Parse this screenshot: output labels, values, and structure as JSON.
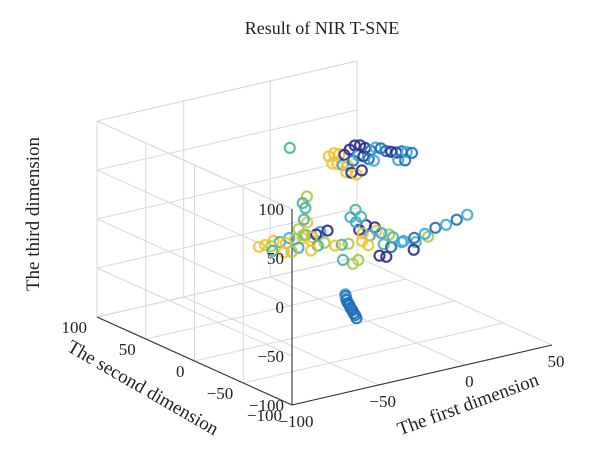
{
  "chart_data": {
    "type": "scatter",
    "projection": "3d",
    "title": "Result of NIR T-SNE",
    "xlabel": "The first dimension",
    "ylabel": "The second dimension",
    "zlabel": "The third dimension",
    "xlim": [
      -100,
      50
    ],
    "ylim": [
      -100,
      100
    ],
    "zlim": [
      -100,
      100
    ],
    "xticks": [
      "−100",
      "−50",
      "0",
      "50"
    ],
    "yticks": [
      "−100",
      "−50",
      "0",
      "50",
      "100"
    ],
    "zticks": [
      "−100",
      "−50",
      "0",
      "50",
      "100"
    ],
    "grid": true,
    "marker": "hollow-circle",
    "colors": [
      "#2b2f8f",
      "#1f6fb8",
      "#3fa9d8",
      "#4fb3a4",
      "#a8cc4a",
      "#f1c232"
    ],
    "points": [
      {
        "x": -60,
        "y": -95,
        "z": -30,
        "c": 1
      },
      {
        "x": -58,
        "y": -90,
        "z": -30,
        "c": 1
      },
      {
        "x": -56,
        "y": -85,
        "z": -31,
        "c": 1
      },
      {
        "x": -54,
        "y": -80,
        "z": -31,
        "c": 1
      },
      {
        "x": -52,
        "y": -75,
        "z": -32,
        "c": 1
      },
      {
        "x": -50,
        "y": -70,
        "z": -32,
        "c": 1
      },
      {
        "x": -48,
        "y": -65,
        "z": -33,
        "c": 1
      },
      {
        "x": -46,
        "y": -60,
        "z": -33,
        "c": 1
      },
      {
        "x": -44,
        "y": -56,
        "z": -34,
        "c": 2
      },
      {
        "x": -42,
        "y": -52,
        "z": -34,
        "c": 1
      },
      {
        "x": -40,
        "y": -48,
        "z": -35,
        "c": 2
      },
      {
        "x": -60,
        "y": 5,
        "z": -2,
        "c": 5
      },
      {
        "x": -57,
        "y": 4,
        "z": -1,
        "c": 5
      },
      {
        "x": -54,
        "y": 3,
        "z": -3,
        "c": 4
      },
      {
        "x": -51,
        "y": 6,
        "z": 0,
        "c": 5
      },
      {
        "x": -48,
        "y": 5,
        "z": -2,
        "c": 3
      },
      {
        "x": -45,
        "y": 4,
        "z": -4,
        "c": 5
      },
      {
        "x": -42,
        "y": 6,
        "z": -1,
        "c": 2
      },
      {
        "x": -39,
        "y": 5,
        "z": -3,
        "c": 4
      },
      {
        "x": -36,
        "y": 3,
        "z": -2,
        "c": 5
      },
      {
        "x": -33,
        "y": 5,
        "z": -1,
        "c": 3
      },
      {
        "x": -30,
        "y": 4,
        "z": -4,
        "c": 5
      },
      {
        "x": -27,
        "y": 5,
        "z": -3,
        "c": 0
      },
      {
        "x": -24,
        "y": 6,
        "z": -2,
        "c": 2
      },
      {
        "x": -21,
        "y": 4,
        "z": -1,
        "c": 0
      },
      {
        "x": -55,
        "y": 0,
        "z": -6,
        "c": 3
      },
      {
        "x": -50,
        "y": -3,
        "z": -8,
        "c": 5
      },
      {
        "x": -45,
        "y": -2,
        "z": -10,
        "c": 4
      },
      {
        "x": -40,
        "y": 0,
        "z": -9,
        "c": 2
      },
      {
        "x": -35,
        "y": -4,
        "z": -12,
        "c": 5
      },
      {
        "x": -30,
        "y": -2,
        "z": -10,
        "c": 3
      },
      {
        "x": -40,
        "y": 0,
        "z": 10,
        "c": 4
      },
      {
        "x": -38,
        "y": -2,
        "z": 20,
        "c": 3
      },
      {
        "x": -36,
        "y": 0,
        "z": 30,
        "c": 3
      },
      {
        "x": -34,
        "y": 2,
        "z": 40,
        "c": 4
      },
      {
        "x": -35,
        "y": 0,
        "z": 15,
        "c": 5
      },
      {
        "x": -39,
        "y": -3,
        "z": 5,
        "c": 4
      },
      {
        "x": -37,
        "y": 1,
        "z": 35,
        "c": 3
      },
      {
        "x": -45,
        "y": 0,
        "z": 95,
        "c": 3
      },
      {
        "x": -30,
        "y": 5,
        "z": -8,
        "c": 5
      },
      {
        "x": -25,
        "y": 0,
        "z": -10,
        "c": 4
      },
      {
        "x": -20,
        "y": -2,
        "z": -14,
        "c": 5
      },
      {
        "x": -15,
        "y": 0,
        "z": -16,
        "c": 3
      },
      {
        "x": -10,
        "y": 2,
        "z": -18,
        "c": 4
      },
      {
        "x": -5,
        "y": -3,
        "z": -15,
        "c": 5
      },
      {
        "x": 0,
        "y": -2,
        "z": -12,
        "c": 2
      },
      {
        "x": 5,
        "y": 0,
        "z": -10,
        "c": 5
      },
      {
        "x": 10,
        "y": -4,
        "z": -14,
        "c": 4
      },
      {
        "x": -20,
        "y": -10,
        "z": -25,
        "c": 3
      },
      {
        "x": -10,
        "y": -8,
        "z": -30,
        "c": 4
      },
      {
        "x": 0,
        "y": -12,
        "z": -28,
        "c": 0
      },
      {
        "x": 5,
        "y": -10,
        "z": -32,
        "c": 0
      },
      {
        "x": 10,
        "y": -6,
        "z": -26,
        "c": 1
      },
      {
        "x": 15,
        "y": -8,
        "z": -22,
        "c": 2
      },
      {
        "x": -12,
        "y": -6,
        "z": -34,
        "c": 4
      },
      {
        "x": -2,
        "y": -4,
        "z": -20,
        "c": 5
      },
      {
        "x": 8,
        "y": -2,
        "z": -24,
        "c": 3
      },
      {
        "x": -5,
        "y": 0,
        "z": -5,
        "c": 0
      },
      {
        "x": 0,
        "y": 2,
        "z": -3,
        "c": 0
      },
      {
        "x": 4,
        "y": 0,
        "z": -6,
        "c": 0
      },
      {
        "x": -4,
        "y": -2,
        "z": -8,
        "c": 5
      },
      {
        "x": -10,
        "y": 0,
        "z": 10,
        "c": 2
      },
      {
        "x": -6,
        "y": 2,
        "z": 15,
        "c": 3
      },
      {
        "x": -8,
        "y": -2,
        "z": 5,
        "c": 2
      },
      {
        "x": -4,
        "y": 0,
        "z": 8,
        "c": 3
      },
      {
        "x": 5,
        "y": -5,
        "z": -10,
        "c": 2
      },
      {
        "x": 10,
        "y": -8,
        "z": -15,
        "c": 3
      },
      {
        "x": 15,
        "y": -10,
        "z": -20,
        "c": 2
      },
      {
        "x": 20,
        "y": -12,
        "z": -18,
        "c": 1
      },
      {
        "x": 25,
        "y": -14,
        "z": -15,
        "c": 2
      },
      {
        "x": 30,
        "y": -16,
        "z": -10,
        "c": 1
      },
      {
        "x": 35,
        "y": -18,
        "z": -8,
        "c": 2
      },
      {
        "x": 40,
        "y": -20,
        "z": -4,
        "c": 1
      },
      {
        "x": 45,
        "y": -22,
        "z": 0,
        "c": 2
      },
      {
        "x": 18,
        "y": -15,
        "z": -28,
        "c": 0
      },
      {
        "x": 22,
        "y": -10,
        "z": -24,
        "c": 3
      },
      {
        "x": 28,
        "y": -12,
        "z": -20,
        "c": 4
      },
      {
        "x": 0,
        "y": 40,
        "z": 50,
        "c": 5
      },
      {
        "x": 3,
        "y": 40,
        "z": 52,
        "c": 5
      },
      {
        "x": 6,
        "y": 40,
        "z": 50,
        "c": 5
      },
      {
        "x": 9,
        "y": 40,
        "z": 48,
        "c": 0
      },
      {
        "x": 12,
        "y": 40,
        "z": 52,
        "c": 0
      },
      {
        "x": 15,
        "y": 40,
        "z": 55,
        "c": 0
      },
      {
        "x": 18,
        "y": 40,
        "z": 54,
        "c": 0
      },
      {
        "x": 21,
        "y": 40,
        "z": 50,
        "c": 0
      },
      {
        "x": 24,
        "y": 40,
        "z": 46,
        "c": 1
      },
      {
        "x": 27,
        "y": 40,
        "z": 48,
        "c": 2
      },
      {
        "x": 30,
        "y": 40,
        "z": 46,
        "c": 1
      },
      {
        "x": 33,
        "y": 40,
        "z": 42,
        "c": 1
      },
      {
        "x": 36,
        "y": 40,
        "z": 40,
        "c": 0
      },
      {
        "x": 39,
        "y": 40,
        "z": 38,
        "c": 0
      },
      {
        "x": 2,
        "y": 40,
        "z": 42,
        "c": 5
      },
      {
        "x": 5,
        "y": 40,
        "z": 40,
        "c": 5
      },
      {
        "x": 8,
        "y": 40,
        "z": 38,
        "c": 2
      },
      {
        "x": 11,
        "y": 40,
        "z": 36,
        "c": 5
      },
      {
        "x": 14,
        "y": 40,
        "z": 40,
        "c": 1
      },
      {
        "x": 17,
        "y": 40,
        "z": 44,
        "c": 2
      },
      {
        "x": 20,
        "y": 40,
        "z": 42,
        "c": 0
      },
      {
        "x": 23,
        "y": 40,
        "z": 38,
        "c": 1
      },
      {
        "x": 26,
        "y": 40,
        "z": 35,
        "c": 2
      },
      {
        "x": 10,
        "y": 40,
        "z": 30,
        "c": 5
      },
      {
        "x": 13,
        "y": 40,
        "z": 28,
        "c": 0
      },
      {
        "x": 16,
        "y": 40,
        "z": 25,
        "c": 5
      },
      {
        "x": 19,
        "y": 40,
        "z": 28,
        "c": 0
      },
      {
        "x": 42,
        "y": 40,
        "z": 38,
        "c": 1
      },
      {
        "x": 45,
        "y": 40,
        "z": 36,
        "c": 2
      },
      {
        "x": 48,
        "y": 40,
        "z": 34,
        "c": 1
      },
      {
        "x": 40,
        "y": 40,
        "z": 30,
        "c": 2
      },
      {
        "x": 44,
        "y": 40,
        "z": 28,
        "c": 1
      }
    ]
  }
}
